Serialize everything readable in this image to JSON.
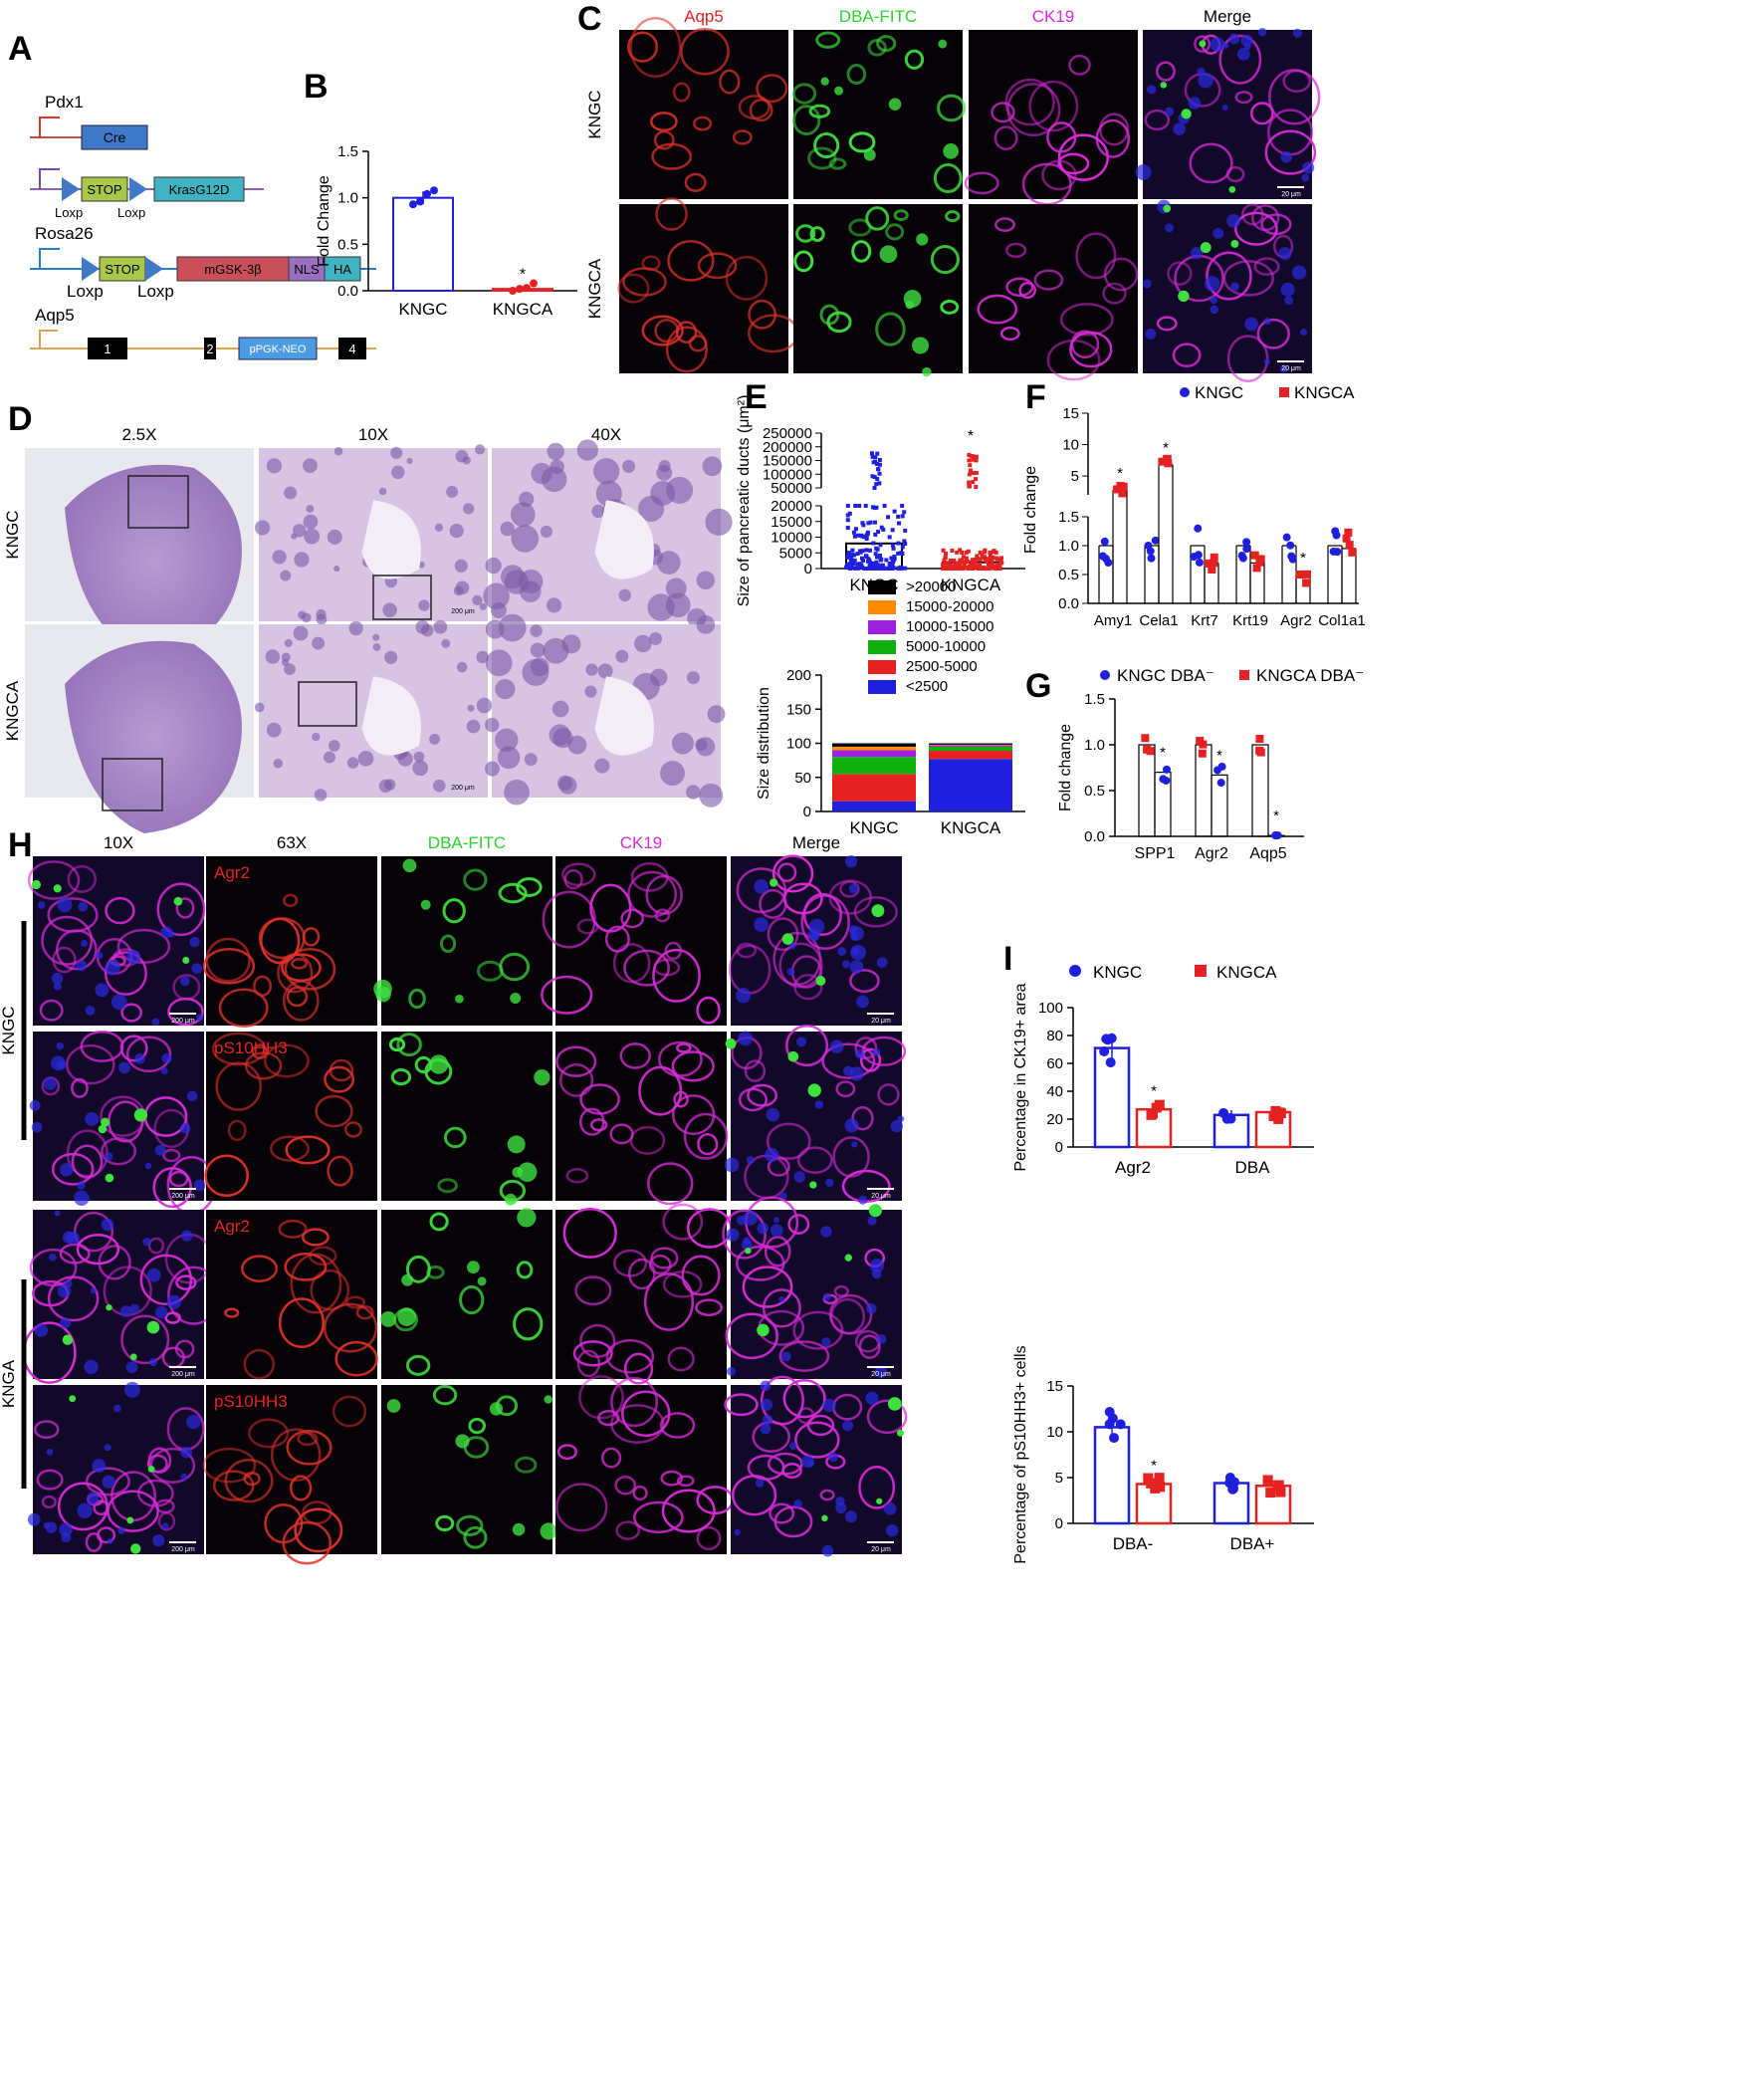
{
  "colors": {
    "blue": "#1f1fe0",
    "red": "#e52121",
    "green": "#2fd12f",
    "magenta": "#d62bd6",
    "darkpanel": "#0a0310"
  },
  "panel_letters": [
    "A",
    "B",
    "C",
    "D",
    "E",
    "F",
    "G",
    "H",
    "I"
  ],
  "panelA": {
    "pdx1": "Pdx1",
    "cre": "Cre",
    "stop": "STOP",
    "kras": "KrasG12D",
    "loxp": "Loxp",
    "rosa": "Rosa26",
    "mgsk": "mGSK-3β",
    "nls": "NLS",
    "ha": "HA",
    "aqp5": "Aqp5",
    "ex1": "1",
    "ex2": "2",
    "neo": "pPGK-NEO",
    "ex4": "4"
  },
  "panelC": {
    "columns": [
      "Aqp5",
      "DBA-FITC",
      "CK19",
      "Merge"
    ],
    "rows": [
      "KNGC",
      "KNGCA"
    ],
    "scale": "20 μm"
  },
  "panelD": {
    "columns": [
      "2.5X",
      "10X",
      "40X"
    ],
    "rows": [
      "KNGC",
      "KNGCA"
    ],
    "scale": "200 μm"
  },
  "panelH": {
    "columns": [
      "10X",
      "63X",
      "DBA-FITC",
      "CK19",
      "Merge"
    ],
    "row_markers": [
      "Agr2",
      "pS10HH3",
      "Agr2",
      "pS10HH3"
    ],
    "groups": [
      "KNGC",
      "KNGA"
    ],
    "scale_low": "200 μm",
    "scale_high": "20 μm"
  },
  "chart_data": [
    {
      "id": "B",
      "type": "bar",
      "ylabel": "Fold Change",
      "ylim": [
        0,
        1.5
      ],
      "yticks": [
        "0.0",
        "0.5",
        "1.0",
        "1.5"
      ],
      "categories": [
        "KNGC",
        "KNGCA"
      ],
      "values": [
        1.0,
        0.02
      ],
      "errors": [
        0.07,
        0.02
      ],
      "points": [
        [
          0.93,
          0.96,
          1.04,
          1.08
        ],
        [
          0.0,
          0.02,
          0.03,
          0.08
        ]
      ],
      "stars": [
        "",
        "*"
      ]
    },
    {
      "id": "E1",
      "type": "scatter",
      "ylabel": "Size of pancreatic ducts (μm²)",
      "ylim_lower": [
        0,
        20000
      ],
      "ylim_upper": [
        50000,
        250000
      ],
      "yticks_lower": [
        "0",
        "5000",
        "10000",
        "15000",
        "20000"
      ],
      "yticks_upper": [
        "50000",
        "100000",
        "150000",
        "200000",
        "250000"
      ],
      "categories": [
        "KNGC",
        "KNGCA"
      ],
      "means": [
        8000,
        2000
      ],
      "max": [
        185000,
        175000
      ],
      "stars": [
        "",
        "*"
      ]
    },
    {
      "id": "E2",
      "type": "bar",
      "ylabel": "Size distribution",
      "ylim": [
        0,
        200
      ],
      "yticks": [
        "0",
        "50",
        "100",
        "150",
        "200"
      ],
      "categories": [
        "KNGC",
        "KNGCA"
      ],
      "series": [
        {
          "name": "<2500",
          "values": [
            15,
            77
          ]
        },
        {
          "name": "2500-5000",
          "values": [
            40,
            12
          ]
        },
        {
          "name": "5000-10000",
          "values": [
            25,
            6
          ]
        },
        {
          "name": "10000-15000",
          "values": [
            10,
            2
          ]
        },
        {
          "name": "15000-20000",
          "values": [
            5,
            1
          ]
        },
        {
          "name": ">20000",
          "values": [
            5,
            2
          ]
        }
      ]
    },
    {
      "id": "F",
      "type": "bar",
      "ylabel": "Fold change",
      "legend": [
        "KNGC",
        "KNGCA"
      ],
      "yticks_lower": [
        "0.0",
        "0.5",
        "1.0",
        "1.5"
      ],
      "yticks_upper": [
        "5",
        "10",
        "15"
      ],
      "categories": [
        "Amy1",
        "Cela1",
        "Krt7",
        "Krt19",
        "Agr2",
        "Col1a1"
      ],
      "series": [
        {
          "name": "KNGC",
          "values": [
            1.0,
            1.0,
            1.0,
            1.0,
            1.0,
            1.0
          ]
        },
        {
          "name": "KNGCA",
          "values": [
            2.8,
            6.8,
            0.7,
            0.7,
            0.5,
            0.95
          ]
        }
      ],
      "stars": [
        "*",
        "*",
        "",
        "",
        "*",
        ""
      ]
    },
    {
      "id": "G",
      "type": "bar",
      "ylabel": "Fold change",
      "legend": [
        "KNGC DBA⁻",
        "KNGCA DBA⁻"
      ],
      "ylim": [
        0,
        1.5
      ],
      "yticks": [
        "0.0",
        "0.5",
        "1.0",
        "1.5"
      ],
      "categories": [
        "SPP1",
        "Agr2",
        "Aqp5"
      ],
      "series": [
        {
          "name": "KNGC DBA⁻",
          "values": [
            1.0,
            1.0,
            1.0
          ]
        },
        {
          "name": "KNGCA DBA⁻",
          "values": [
            0.7,
            0.67,
            0.01
          ]
        }
      ],
      "stars": [
        "*",
        "*",
        "*"
      ]
    },
    {
      "id": "I1",
      "type": "bar",
      "ylabel": "Percentage in CK19+ area",
      "legend": [
        "KNGC",
        "KNGCA"
      ],
      "ylim": [
        0,
        100
      ],
      "yticks": [
        "0",
        "20",
        "40",
        "60",
        "80",
        "100"
      ],
      "categories": [
        "Agr2",
        "DBA"
      ],
      "series": [
        {
          "name": "KNGC",
          "values": [
            71,
            23
          ]
        },
        {
          "name": "KNGCA",
          "values": [
            27,
            25
          ]
        }
      ],
      "stars": [
        "*",
        ""
      ]
    },
    {
      "id": "I2",
      "type": "bar",
      "ylabel": "Percentage of pS10HH3+ cells",
      "ylim": [
        0,
        15
      ],
      "yticks": [
        "0",
        "5",
        "10",
        "15"
      ],
      "categories": [
        "DBA-",
        "DBA+"
      ],
      "series": [
        {
          "name": "KNGC",
          "values": [
            10.5,
            4.4
          ]
        },
        {
          "name": "KNGCA",
          "values": [
            4.3,
            4.1
          ]
        }
      ],
      "stars": [
        "*",
        ""
      ]
    }
  ]
}
